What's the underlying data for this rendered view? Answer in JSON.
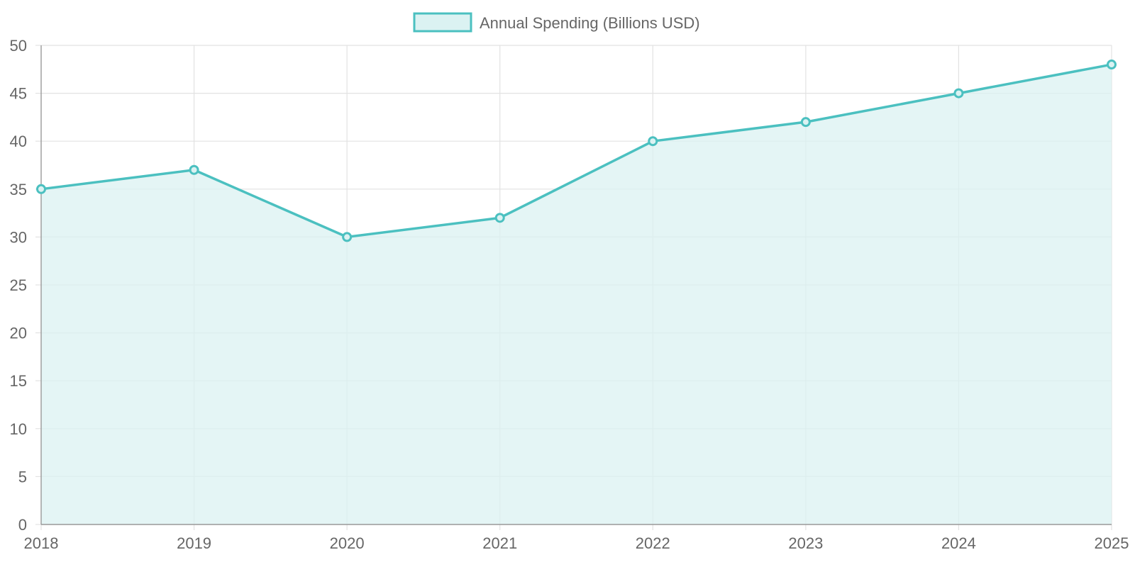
{
  "chart_data": {
    "type": "area",
    "title": "",
    "xlabel": "",
    "ylabel": "",
    "categories": [
      "2018",
      "2019",
      "2020",
      "2021",
      "2022",
      "2023",
      "2024",
      "2025"
    ],
    "series": [
      {
        "name": "Annual Spending (Billions USD)",
        "values": [
          35,
          37,
          30,
          32,
          40,
          42,
          45,
          48
        ],
        "color": "#4bc0c0",
        "fill": "#dbf2f2"
      }
    ],
    "ylim": [
      0,
      50
    ],
    "yticks": [
      0,
      5,
      10,
      15,
      20,
      25,
      30,
      35,
      40,
      45,
      50
    ],
    "grid": true,
    "legend": "top-center"
  }
}
